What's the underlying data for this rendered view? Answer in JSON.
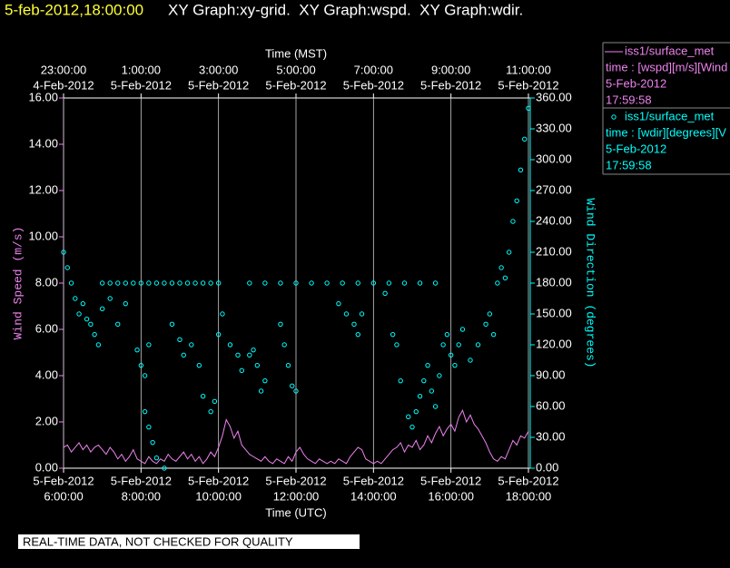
{
  "chart_data": {
    "type": "line",
    "timestamp": "5-feb-2012,18:00:00",
    "title": "XY Graph:xy-grid.  XY Graph:wspd.  XY Graph:wdir.",
    "x_label": "Time (UTC)",
    "x2_label": "Time (MST)",
    "y_label": "Wind Speed (m/s)",
    "y2_label": "Wind Direction (degrees)",
    "footer": "REAL-TIME DATA, NOT CHECKED FOR QUALITY",
    "xlim": [
      6,
      18
    ],
    "xticks": [
      {
        "value": 6,
        "label": "6:00:00",
        "date": "5-Feb-2012"
      },
      {
        "value": 8,
        "label": "8:00:00",
        "date": "5-Feb-2012"
      },
      {
        "value": 10,
        "label": "10:00:00",
        "date": "5-Feb-2012"
      },
      {
        "value": 12,
        "label": "12:00:00",
        "date": "5-Feb-2012"
      },
      {
        "value": 14,
        "label": "14:00:00",
        "date": "5-Feb-2012"
      },
      {
        "value": 16,
        "label": "16:00:00",
        "date": "5-Feb-2012"
      },
      {
        "value": 18,
        "label": "18:00:00",
        "date": "5-Feb-2012"
      }
    ],
    "x2ticks": [
      {
        "value": 6,
        "label": "23:00:00",
        "date": "4-Feb-2012"
      },
      {
        "value": 8,
        "label": "1:00:00",
        "date": "5-Feb-2012"
      },
      {
        "value": 10,
        "label": "3:00:00",
        "date": "5-Feb-2012"
      },
      {
        "value": 12,
        "label": "5:00:00",
        "date": "5-Feb-2012"
      },
      {
        "value": 14,
        "label": "7:00:00",
        "date": "5-Feb-2012"
      },
      {
        "value": 16,
        "label": "9:00:00",
        "date": "5-Feb-2012"
      },
      {
        "value": 18,
        "label": "11:00:00",
        "date": "5-Feb-2012"
      }
    ],
    "ylim": [
      0,
      16
    ],
    "yticks": [
      {
        "value": 0,
        "label": "0.00"
      },
      {
        "value": 2,
        "label": "2.00"
      },
      {
        "value": 4,
        "label": "4.00"
      },
      {
        "value": 6,
        "label": "6.00"
      },
      {
        "value": 8,
        "label": "8.00"
      },
      {
        "value": 10,
        "label": "10.00"
      },
      {
        "value": 12,
        "label": "12.00"
      },
      {
        "value": 14,
        "label": "14.00"
      },
      {
        "value": 16,
        "label": "16.00"
      }
    ],
    "y2lim": [
      0,
      360
    ],
    "y2ticks": [
      {
        "value": 0,
        "label": "0.00"
      },
      {
        "value": 30,
        "label": "30.00"
      },
      {
        "value": 60,
        "label": "60.00"
      },
      {
        "value": 90,
        "label": "90.00"
      },
      {
        "value": 120,
        "label": "120.00"
      },
      {
        "value": 150,
        "label": "150.00"
      },
      {
        "value": 180,
        "label": "180.00"
      },
      {
        "value": 210,
        "label": "210.00"
      },
      {
        "value": 240,
        "label": "240.00"
      },
      {
        "value": 270,
        "label": "270.00"
      },
      {
        "value": 300,
        "label": "300.00"
      },
      {
        "value": 330,
        "label": "330.00"
      },
      {
        "value": 360,
        "label": "360.00"
      }
    ],
    "grid": true,
    "series": [
      {
        "name": "iss1/surface_met",
        "type": "line",
        "color": "#ee82ee",
        "legend_text": [
          "time : [wspd][m/s][Wind",
          "5-Feb-2012",
          "17:59:58"
        ],
        "x": [
          6.0,
          6.1,
          6.2,
          6.3,
          6.4,
          6.5,
          6.6,
          6.7,
          6.8,
          6.9,
          7.0,
          7.1,
          7.2,
          7.3,
          7.4,
          7.5,
          7.6,
          7.7,
          7.8,
          7.9,
          8.0,
          8.1,
          8.2,
          8.3,
          8.4,
          8.5,
          8.6,
          8.7,
          8.8,
          8.9,
          9.0,
          9.1,
          9.2,
          9.3,
          9.4,
          9.5,
          9.6,
          9.7,
          9.8,
          9.9,
          10.0,
          10.1,
          10.2,
          10.3,
          10.4,
          10.5,
          10.6,
          10.7,
          10.8,
          10.9,
          11.0,
          11.1,
          11.2,
          11.3,
          11.4,
          11.5,
          11.6,
          11.7,
          11.8,
          11.9,
          12.0,
          12.1,
          12.2,
          12.3,
          12.4,
          12.5,
          12.6,
          12.7,
          12.8,
          12.9,
          13.0,
          13.1,
          13.2,
          13.3,
          13.4,
          13.5,
          13.6,
          13.7,
          13.8,
          13.9,
          14.0,
          14.1,
          14.2,
          14.3,
          14.4,
          14.5,
          14.6,
          14.7,
          14.8,
          14.9,
          15.0,
          15.1,
          15.2,
          15.3,
          15.4,
          15.5,
          15.6,
          15.7,
          15.8,
          15.9,
          16.0,
          16.1,
          16.2,
          16.3,
          16.4,
          16.5,
          16.6,
          16.7,
          16.8,
          16.9,
          17.0,
          17.1,
          17.2,
          17.3,
          17.4,
          17.5,
          17.6,
          17.7,
          17.8,
          17.9,
          18.0
        ],
        "values": [
          0.9,
          1.0,
          0.7,
          0.9,
          1.1,
          0.8,
          1.0,
          0.7,
          0.9,
          1.0,
          0.8,
          0.6,
          0.9,
          0.7,
          0.4,
          0.6,
          0.3,
          0.5,
          0.8,
          0.4,
          0.3,
          0.2,
          0.5,
          0.3,
          0.2,
          0.4,
          0.3,
          0.6,
          0.4,
          0.3,
          0.5,
          0.7,
          0.4,
          0.6,
          0.3,
          0.5,
          0.2,
          0.4,
          0.7,
          0.5,
          0.9,
          1.4,
          2.1,
          1.8,
          1.3,
          1.6,
          1.0,
          0.8,
          0.6,
          0.5,
          0.4,
          0.3,
          0.5,
          0.3,
          0.2,
          0.4,
          0.3,
          0.2,
          0.5,
          0.3,
          0.7,
          0.9,
          0.6,
          0.4,
          0.3,
          0.2,
          0.4,
          0.3,
          0.2,
          0.3,
          0.2,
          0.4,
          0.3,
          0.2,
          0.5,
          0.7,
          0.9,
          0.8,
          0.4,
          0.3,
          0.2,
          0.3,
          0.2,
          0.4,
          0.6,
          0.8,
          0.9,
          1.1,
          0.7,
          1.0,
          0.9,
          1.2,
          0.8,
          1.0,
          1.4,
          1.1,
          1.5,
          1.8,
          1.4,
          1.7,
          1.9,
          1.6,
          2.2,
          2.5,
          2.0,
          2.3,
          1.9,
          1.7,
          1.4,
          1.1,
          0.7,
          0.4,
          0.3,
          0.5,
          0.4,
          0.8,
          1.2,
          1.0,
          1.4,
          1.3,
          1.6
        ]
      },
      {
        "name": "iss1/surface_met",
        "type": "scatter",
        "axis": "y2",
        "color": "#00ffff",
        "legend_text": [
          "time : [wdir][degrees][V",
          "5-Feb-2012",
          "17:59:58"
        ],
        "x": [
          6.0,
          6.1,
          6.2,
          6.3,
          6.4,
          6.5,
          6.6,
          6.7,
          6.8,
          6.9,
          7.0,
          7.2,
          7.4,
          7.6,
          7.8,
          7.0,
          7.2,
          7.4,
          7.6,
          7.9,
          8.0,
          8.1,
          8.2,
          8.1,
          8.2,
          8.3,
          8.4,
          8.6,
          8.0,
          8.2,
          8.4,
          8.6,
          8.8,
          9.0,
          9.2,
          9.4,
          9.6,
          9.8,
          10.0,
          8.8,
          9.0,
          9.1,
          9.3,
          9.5,
          9.6,
          9.8,
          9.9,
          10.0,
          10.1,
          10.3,
          10.5,
          10.6,
          10.8,
          10.9,
          11.0,
          11.1,
          11.2,
          10.8,
          11.2,
          11.6,
          12.0,
          12.4,
          12.8,
          13.2,
          13.6,
          14.0,
          14.4,
          14.8,
          15.2,
          15.6,
          11.6,
          11.7,
          11.8,
          11.9,
          12.0,
          13.1,
          13.3,
          13.5,
          13.6,
          13.7,
          14.3,
          14.5,
          14.6,
          14.7,
          14.9,
          15.0,
          15.1,
          15.2,
          15.3,
          15.4,
          15.5,
          15.6,
          15.7,
          15.8,
          15.9,
          16.0,
          16.1,
          16.2,
          16.3,
          16.5,
          16.7,
          16.9,
          17.0,
          17.1,
          17.2,
          17.3,
          17.4,
          17.5,
          17.6,
          17.7,
          17.8,
          17.9,
          18.0
        ],
        "values": [
          210,
          195,
          180,
          165,
          150,
          160,
          145,
          140,
          130,
          120,
          180,
          180,
          180,
          180,
          180,
          155,
          165,
          140,
          160,
          115,
          100,
          90,
          120,
          55,
          40,
          25,
          10,
          0,
          180,
          180,
          180,
          180,
          180,
          180,
          180,
          180,
          180,
          180,
          180,
          140,
          125,
          110,
          120,
          100,
          70,
          55,
          65,
          130,
          150,
          120,
          110,
          95,
          110,
          115,
          100,
          75,
          85,
          180,
          180,
          180,
          180,
          180,
          180,
          180,
          180,
          180,
          180,
          180,
          180,
          180,
          140,
          120,
          100,
          80,
          75,
          160,
          150,
          140,
          130,
          150,
          170,
          130,
          120,
          85,
          50,
          40,
          55,
          70,
          85,
          100,
          75,
          60,
          90,
          120,
          130,
          110,
          100,
          120,
          135,
          105,
          120,
          140,
          150,
          130,
          180,
          195,
          185,
          210,
          240,
          260,
          290,
          320,
          350
        ]
      }
    ]
  }
}
